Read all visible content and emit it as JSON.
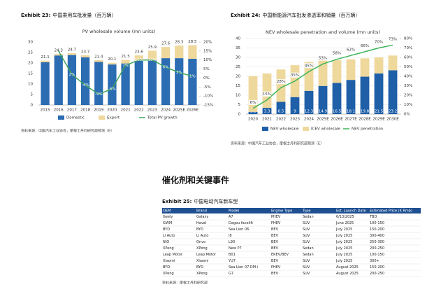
{
  "chart_data": [
    {
      "type": "bar",
      "exhibit": "Exhibit 23:",
      "exhibit_title": "中国乘用车批发量（百万辆）",
      "title": "PV wholesale volume (mn units)",
      "categories": [
        "2015",
        "2016",
        "2017",
        "2018",
        "2019",
        "2020",
        "2021",
        "2022",
        "2023",
        "2024",
        "2025E",
        "2026E"
      ],
      "series": [
        {
          "name": "Domestic",
          "color": "#2b6cb3",
          "values": [
            20.4,
            23.6,
            23.8,
            22.7,
            20.5,
            19.3,
            19.8,
            21.1,
            21.4,
            22.3,
            22.3,
            22.0
          ]
        },
        {
          "name": "Export",
          "color": "#efd89c",
          "values": [
            0.7,
            0.7,
            0.9,
            1.0,
            0.9,
            0.8,
            1.7,
            2.5,
            4.5,
            5.3,
            6.0,
            6.5
          ]
        },
        {
          "name": "Total PV growth",
          "type": "line",
          "axis": "y2",
          "color": "#3da65b",
          "values": [
            null,
            15,
            2,
            -4,
            -9,
            -6,
            7,
            10,
            10,
            6,
            3,
            1
          ],
          "value_labels": [
            null,
            null,
            "2%",
            "-4%",
            "-9%",
            "-6%",
            "7%",
            "10%",
            "10%",
            "6%",
            "3%",
            "1%"
          ],
          "label_position": "on"
        }
      ],
      "totals": [
        21.1,
        24.3,
        24.7,
        23.7,
        21.4,
        20.1,
        21.5,
        23.6,
        25.9,
        27.6,
        28.3,
        28.5
      ],
      "ylim": [
        0,
        30
      ],
      "yticks": [
        0,
        5,
        10,
        15,
        20,
        25,
        30
      ],
      "y2lim": [
        -15,
        20
      ],
      "y2ticks": [
        {
          "value": -15,
          "label": "-15%"
        },
        {
          "value": -10,
          "label": "-10%"
        },
        {
          "value": -5,
          "label": "-5%"
        },
        {
          "value": 0,
          "label": "0%"
        },
        {
          "value": 5,
          "label": "5%"
        },
        {
          "value": 10,
          "label": "10%"
        },
        {
          "value": 15,
          "label": "15%"
        },
        {
          "value": 20,
          "label": "20%"
        }
      ],
      "grid": false,
      "legend": "bottom",
      "source": "资料来源：中国汽车工业协会，摩根士丹利研究部预测（E）"
    },
    {
      "type": "bar",
      "exhibit": "Exhibit 24:",
      "exhibit_title": "中国新能源汽车批发渗透率和销量（百万辆）",
      "title": "NEV wholesale penetration and volume (mn units)",
      "categories": [
        "2020",
        "2021",
        "2022",
        "2023",
        "2024",
        "2025E",
        "2026E",
        "2027E",
        "2028E",
        "2029E",
        "2030E"
      ],
      "series": [
        {
          "name": "NEV wholesale",
          "color": "#1f5fa8",
          "values": [
            1.2,
            3.3,
            6.5,
            9.0,
            12.3,
            14.9,
            16.5,
            18.1,
            19.8,
            21.5,
            23.2
          ],
          "labels": "inside"
        },
        {
          "name": "ICEV wholesale",
          "color": "#efd89c",
          "values": [
            18.9,
            18.2,
            17.1,
            16.9,
            15.3,
            13.4,
            12.0,
            10.9,
            9.7,
            8.5,
            7.8
          ]
        },
        {
          "name": "NEV penetration",
          "type": "line",
          "axis": "y2",
          "color": "#3db55a",
          "values": [
            6,
            15,
            28,
            35,
            45,
            53,
            58,
            62,
            66,
            70,
            73
          ],
          "value_labels": [
            "6%",
            "15%",
            "28%",
            "35%",
            "45%",
            "53%",
            "58%",
            "62%",
            "66%",
            "70%",
            "73%"
          ],
          "label_position": "above"
        }
      ],
      "ylim": [
        0,
        40
      ],
      "yticks": [
        0,
        5,
        10,
        15,
        20,
        25,
        30,
        35,
        40
      ],
      "y2lim": [
        0,
        80
      ],
      "y2ticks": [
        {
          "value": 0,
          "label": "0%"
        },
        {
          "value": 10,
          "label": "10%"
        },
        {
          "value": 20,
          "label": "20%"
        },
        {
          "value": 30,
          "label": "30%"
        },
        {
          "value": 40,
          "label": "40%"
        },
        {
          "value": 50,
          "label": "50%"
        },
        {
          "value": 60,
          "label": "60%"
        },
        {
          "value": 70,
          "label": "70%"
        },
        {
          "value": 80,
          "label": "80%"
        }
      ],
      "grid": true,
      "legend": "bottom",
      "source": "资料来源：中国汽车工业协会，摩根士丹利研究部预测（E）"
    }
  ],
  "section_heading": "催化剂和关键事件",
  "table": {
    "exhibit": "Exhibit 25:",
    "exhibit_title": "中国电动汽车新车型",
    "columns": [
      "OEM",
      "Brand",
      "Model",
      "Engine Type",
      "Type",
      "Est. Launch Date",
      "Estimated Price (K Rmb)"
    ],
    "rows": [
      [
        "Geely",
        "Galaxy",
        "A7",
        "PHEV",
        "Sedan",
        "6/13/2025",
        "TBD"
      ],
      [
        "GWM",
        "Haval",
        "Dagou facelift",
        "PHEV",
        "SUV",
        "June 2025",
        "100-150"
      ],
      [
        "BYD",
        "BYD",
        "Sea Lion 06",
        "BEV",
        "SUV",
        "July 2025",
        "150-200"
      ],
      [
        "Li Auto",
        "Li Auto",
        "i8",
        "BEV",
        "SUV",
        "July 2025",
        "300-400"
      ],
      [
        "NIO",
        "Onvo",
        "L90",
        "BEV",
        "SUV",
        "July 2025",
        "250-300"
      ],
      [
        "XPeng",
        "XPeng",
        "New P7",
        "BEV",
        "Sedan",
        "July 2025",
        "200-250"
      ],
      [
        "Leap Motor",
        "Leap Motor",
        "B01",
        "EREV/BEV",
        "Sedan",
        "July 2025",
        "100-150"
      ],
      [
        "Xiaomi",
        "Xiaomi",
        "YU7",
        "BEV",
        "SUV",
        "July 2025",
        "300+"
      ],
      [
        "BYD",
        "BYD",
        "Sea Lion 07 DM-i",
        "PHEV",
        "SUV",
        "August 2025",
        "150-200"
      ],
      [
        "XPeng",
        "XPeng",
        "G7",
        "BEV",
        "SUV",
        "August 2025",
        "200-250"
      ]
    ],
    "source": "资料来源：摩根士丹利研究部"
  }
}
